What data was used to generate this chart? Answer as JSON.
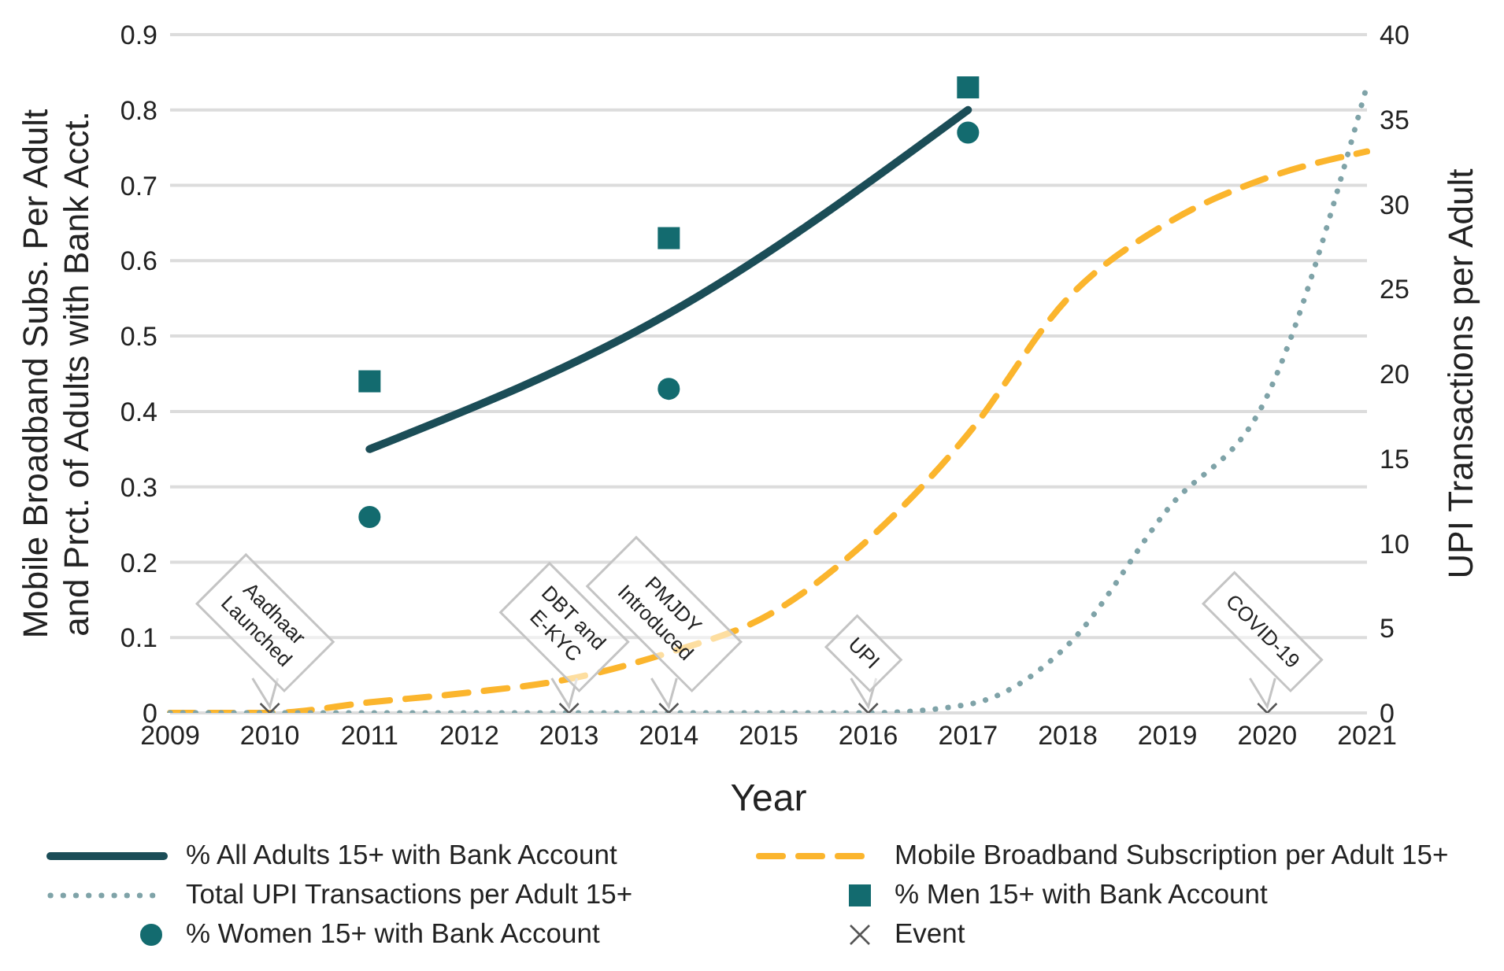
{
  "chart_data": {
    "type": "line",
    "xlabel": "Year",
    "ylabel": "Mobile Broadband Subs. Per Adult and Prct. of Adults with Bank Acct.",
    "y2label": "UPI Transactions per Adult",
    "categories": [
      "2009",
      "2010",
      "2011",
      "2012",
      "2013",
      "2014",
      "2015",
      "2016",
      "2017",
      "2018",
      "2019",
      "2020",
      "2021"
    ],
    "ylim": [
      0,
      0.9
    ],
    "yticks": [
      0,
      0.1,
      0.2,
      0.3,
      0.4,
      0.5,
      0.6,
      0.7,
      0.8,
      0.9
    ],
    "y2lim": [
      0,
      40
    ],
    "y2ticks": [
      0,
      5,
      10,
      15,
      20,
      25,
      30,
      35,
      40
    ],
    "grid": "y",
    "legend": "bottom",
    "series": [
      {
        "name": "% All Adults 15+ with Bank Account",
        "color": "#1b4d57",
        "line_style": "solid",
        "marker": "none",
        "values": [
          null,
          null,
          0.35,
          null,
          null,
          0.53,
          null,
          null,
          0.8,
          null,
          null,
          null,
          null
        ]
      },
      {
        "name": "Mobile Broadband Subscription per Adult 15+",
        "color": "#fbb52d",
        "line_style": "dashed",
        "marker": "none",
        "values": [
          0,
          0,
          0.014,
          0.027,
          0.045,
          0.08,
          0.13,
          0.23,
          0.37,
          0.55,
          0.65,
          0.71,
          0.745
        ]
      },
      {
        "name": "Total UPI Transactions per Adult 15+",
        "axis": "y2",
        "color": "#7fa3a8",
        "line_style": "dotted",
        "marker": "none",
        "values": [
          0,
          0,
          0,
          0,
          0,
          0,
          0,
          0,
          0.5,
          4,
          12,
          18.7,
          37
        ]
      },
      {
        "name": "% Men 15+ with Bank Account",
        "type": "scatter",
        "color": "#136b6f",
        "marker": "square",
        "values": [
          null,
          null,
          0.44,
          null,
          null,
          0.63,
          null,
          null,
          0.83,
          null,
          null,
          null,
          null
        ]
      },
      {
        "name": "% Women 15+ with Bank Account",
        "type": "scatter",
        "color": "#136b6f",
        "marker": "circle",
        "values": [
          null,
          null,
          0.26,
          null,
          null,
          0.43,
          null,
          null,
          0.77,
          null,
          null,
          null,
          null
        ]
      },
      {
        "name": "Event",
        "type": "scatter",
        "color": "#555555",
        "marker": "cross",
        "values": [
          null,
          0,
          null,
          null,
          0,
          0,
          null,
          0,
          null,
          null,
          null,
          0,
          null
        ]
      }
    ],
    "annotations": [
      {
        "text": "Aadhaar Launched",
        "x": "2010",
        "y": 0
      },
      {
        "text": "DBT and E-KYC",
        "x": "2013",
        "y": 0
      },
      {
        "text": "PMJDY Introduced",
        "x": "2014",
        "y": 0
      },
      {
        "text": "UPI",
        "x": "2016",
        "y": 0
      },
      {
        "text": "COVID-19",
        "x": "2020",
        "y": 0
      }
    ]
  }
}
